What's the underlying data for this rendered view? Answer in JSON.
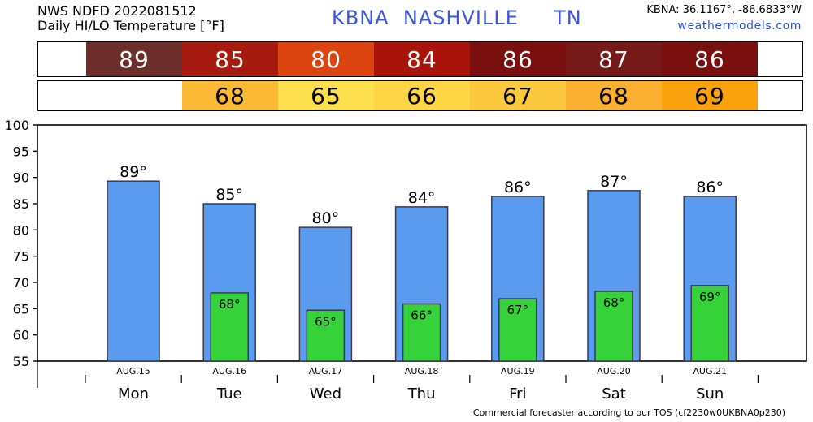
{
  "header": {
    "line1": "NWS NDFD 2022081512",
    "line2": "Daily HI/LO Temperature [°F]",
    "title": "KBNA  NASHVILLE     TN",
    "coords": "KBNA: 36.1167°, -86.6833°W",
    "site": "weathermodels.com"
  },
  "footer": "Commercial forecaster according to our TOS (cf2230w0UKBNA0p230)",
  "strips": {
    "hi": [
      {
        "label": "89",
        "color": "#6b2e2a"
      },
      {
        "label": "85",
        "color": "#a61a10"
      },
      {
        "label": "80",
        "color": "#dc4510"
      },
      {
        "label": "84",
        "color": "#a8140a"
      },
      {
        "label": "86",
        "color": "#7a0f10"
      },
      {
        "label": "87",
        "color": "#751a18"
      },
      {
        "label": "86",
        "color": "#7a0f10"
      }
    ],
    "lo": [
      {
        "label": "",
        "color": "#ffffff"
      },
      {
        "label": "68",
        "color": "#fbb935"
      },
      {
        "label": "65",
        "color": "#fee04f"
      },
      {
        "label": "66",
        "color": "#fdd545"
      },
      {
        "label": "67",
        "color": "#fcc83e"
      },
      {
        "label": "68",
        "color": "#fbb032"
      },
      {
        "label": "69",
        "color": "#f9a20e"
      }
    ]
  },
  "chart_data": {
    "type": "bar",
    "categories": [
      "Mon",
      "Tue",
      "Wed",
      "Thu",
      "Fri",
      "Sat",
      "Sun"
    ],
    "dates": [
      "AUG.15",
      "AUG.16",
      "AUG.17",
      "AUG.18",
      "AUG.19",
      "AUG.20",
      "AUG.21"
    ],
    "series": [
      {
        "values": [
          89.3,
          85,
          80.5,
          84.4,
          86.4,
          87.5,
          86.4
        ],
        "labels": [
          "89°",
          "85°",
          "80°",
          "84°",
          "86°",
          "87°",
          "86°"
        ],
        "color": "#5b9bef"
      },
      {
        "values": [
          null,
          68,
          64.7,
          65.9,
          66.9,
          68.3,
          69.4
        ],
        "labels": [
          "",
          "68°",
          "65°",
          "66°",
          "67°",
          "68°",
          "69°"
        ],
        "color": "#36d23a"
      }
    ],
    "ylim": [
      55,
      100
    ],
    "yticks": [
      55,
      60,
      65,
      70,
      75,
      80,
      85,
      90,
      95,
      100
    ],
    "grid": false
  }
}
